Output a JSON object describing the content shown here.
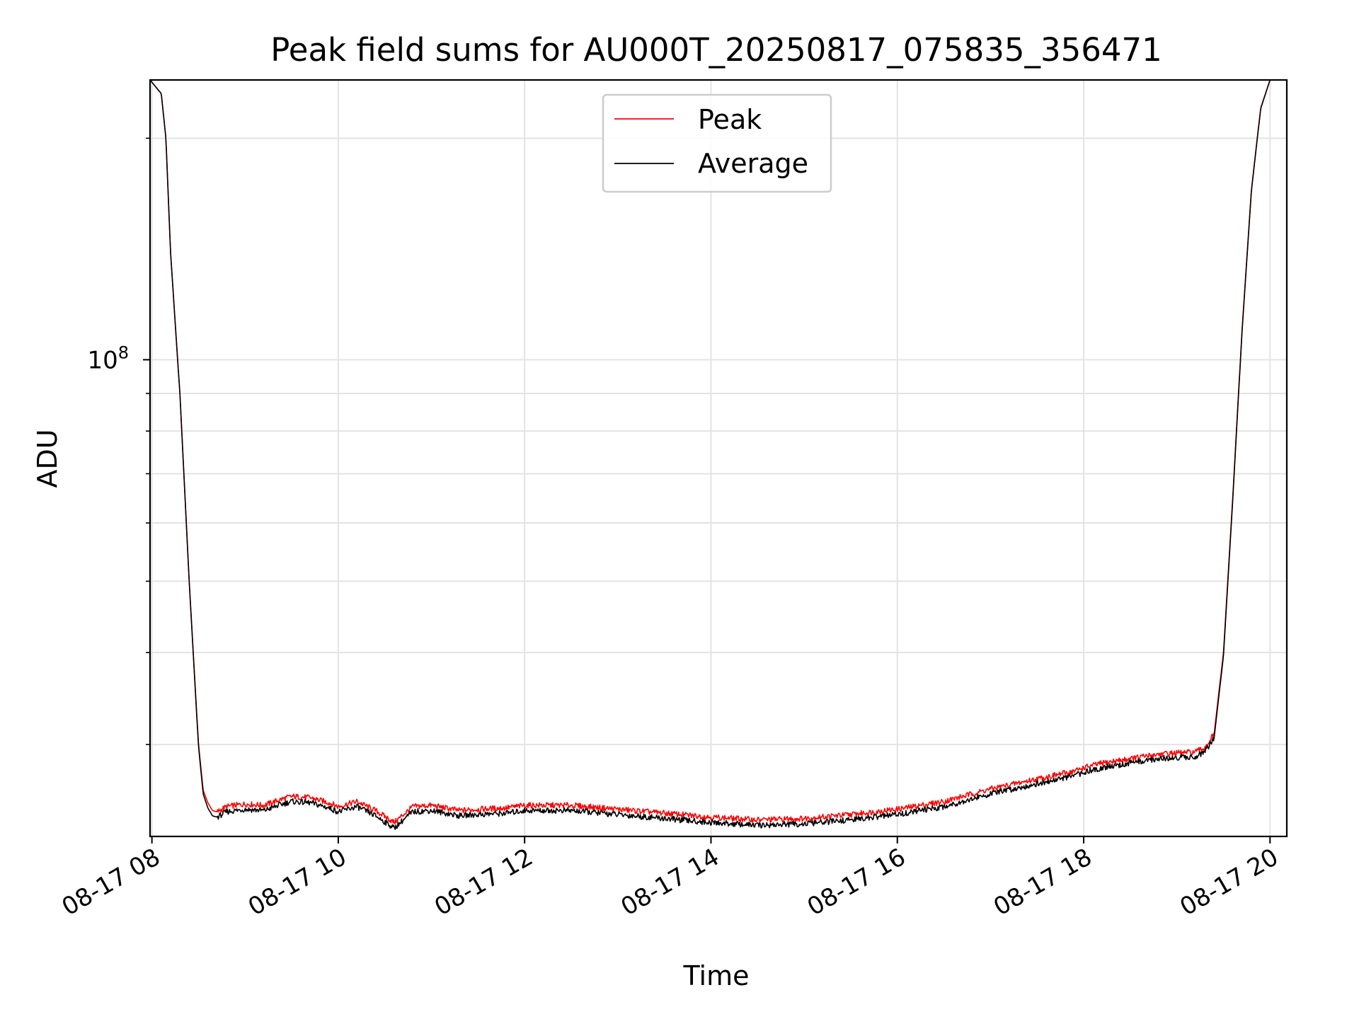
{
  "chart_data": {
    "type": "line",
    "title": "Peak field sums for AU000T_20250817_075835_356471",
    "xlabel": "Time",
    "ylabel": "ADU",
    "x_tick_labels": [
      "08-17 08",
      "08-17 10",
      "08-17 12",
      "08-17 14",
      "08-17 16",
      "08-17 18",
      "08-17 20"
    ],
    "x_tick_hours": [
      8,
      10,
      12,
      14,
      16,
      18,
      20
    ],
    "xlim_hours": [
      7.98,
      20.18
    ],
    "yscale": "log",
    "ylim": [
      22500000,
      240000000
    ],
    "y_major_tick": {
      "base": "10",
      "exponent": "8",
      "value": 100000000
    },
    "y_minor_ticks": [
      30000000,
      40000000,
      50000000,
      60000000,
      70000000,
      80000000,
      90000000,
      200000000
    ],
    "grid": true,
    "legend_position": "top-center",
    "series": [
      {
        "name": "Peak",
        "color": "#ff0000",
        "x": [
          7.98,
          8.1,
          8.15,
          8.2,
          8.3,
          8.4,
          8.5,
          8.55,
          8.6,
          8.65,
          8.7,
          8.8,
          8.9,
          9.0,
          9.2,
          9.4,
          9.5,
          9.7,
          9.9,
          10.0,
          10.1,
          10.2,
          10.4,
          10.6,
          10.7,
          10.8,
          11.0,
          11.3,
          11.5,
          11.8,
          12.0,
          12.5,
          13.0,
          13.5,
          14.0,
          14.5,
          15.0,
          15.5,
          16.0,
          16.5,
          16.8,
          17.0,
          17.3,
          17.6,
          17.9,
          18.0,
          18.2,
          18.5,
          18.8,
          19.0,
          19.2,
          19.3,
          19.4,
          19.5,
          19.6,
          19.7,
          19.8,
          19.9,
          20.0,
          20.05,
          20.1,
          20.18
        ],
        "y": [
          240000000,
          230000000,
          200000000,
          140000000,
          90000000,
          50000000,
          30000000,
          26000000,
          25000000,
          24400000,
          24300000,
          24700000,
          24800000,
          24900000,
          24800000,
          25300000,
          25500000,
          25400000,
          25000000,
          24700000,
          24900000,
          25100000,
          24400000,
          23500000,
          24100000,
          24700000,
          24800000,
          24400000,
          24500000,
          24600000,
          24800000,
          24800000,
          24500000,
          24200000,
          23900000,
          23700000,
          23800000,
          24100000,
          24500000,
          25100000,
          25700000,
          26100000,
          26600000,
          27100000,
          27600000,
          27900000,
          28300000,
          28700000,
          29100000,
          29200000,
          29300000,
          29700000,
          31000000,
          40000000,
          65000000,
          110000000,
          170000000,
          220000000,
          240000000,
          240000000,
          240000000,
          240000000
        ],
        "values_note": ""
      },
      {
        "name": "Average",
        "color": "#000000",
        "x": [
          7.98,
          8.1,
          8.15,
          8.2,
          8.3,
          8.4,
          8.5,
          8.55,
          8.6,
          8.65,
          8.7,
          8.8,
          8.9,
          9.0,
          9.2,
          9.4,
          9.5,
          9.7,
          9.9,
          10.0,
          10.1,
          10.2,
          10.4,
          10.6,
          10.7,
          10.8,
          11.0,
          11.3,
          11.5,
          11.8,
          12.0,
          12.5,
          13.0,
          13.5,
          14.0,
          14.5,
          15.0,
          15.5,
          16.0,
          16.5,
          16.8,
          17.0,
          17.3,
          17.6,
          17.9,
          18.0,
          18.2,
          18.5,
          18.8,
          19.0,
          19.2,
          19.3,
          19.4,
          19.5,
          19.6,
          19.7,
          19.8,
          19.9,
          20.0,
          20.05,
          20.1,
          20.18
        ],
        "y": [
          240000000,
          230000000,
          200000000,
          140000000,
          90000000,
          50000000,
          29800000,
          25700000,
          24600000,
          24000000,
          23900000,
          24300000,
          24400000,
          24500000,
          24400000,
          24900000,
          25100000,
          25000000,
          24600000,
          24300000,
          24500000,
          24700000,
          24000000,
          23100000,
          23700000,
          24300000,
          24400000,
          24000000,
          24100000,
          24200000,
          24400000,
          24400000,
          24100000,
          23800000,
          23500000,
          23300000,
          23400000,
          23700000,
          24100000,
          24700000,
          25300000,
          25700000,
          26200000,
          26700000,
          27200000,
          27500000,
          27900000,
          28300000,
          28700000,
          28800000,
          28900000,
          29300000,
          30600000,
          39600000,
          64500000,
          109500000,
          169500000,
          219500000,
          240000000,
          240000000,
          240000000,
          240000000
        ]
      }
    ]
  }
}
